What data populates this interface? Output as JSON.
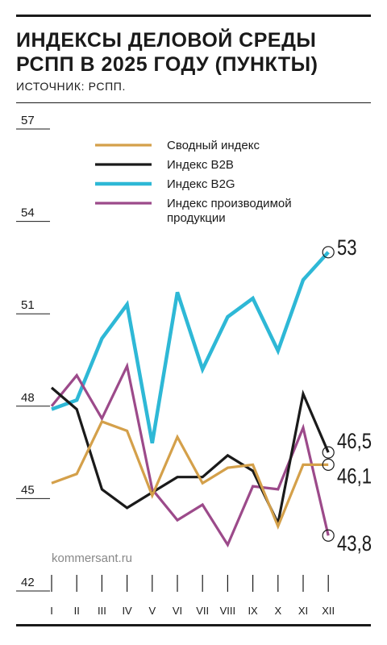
{
  "header": {
    "title": "ИНДЕКСЫ ДЕЛОВОЙ СРЕДЫ РСПП В 2025 ГОДУ (ПУНКТЫ)",
    "source": "ИСТОЧНИК: РСПП."
  },
  "watermark": "kommersant.ru",
  "chart_data": {
    "type": "line",
    "title": "ИНДЕКСЫ ДЕЛОВОЙ СРЕДЫ РСПП В 2025 ГОДУ (ПУНКТЫ)",
    "categories": [
      "I",
      "II",
      "III",
      "IV",
      "V",
      "VI",
      "VII",
      "VIII",
      "IX",
      "X",
      "XI",
      "XII"
    ],
    "yticks": [
      42,
      45,
      48,
      51,
      54,
      57
    ],
    "ylim": [
      42,
      57
    ],
    "grid": false,
    "legend_position": "top",
    "series": [
      {
        "name": "Сводный индекс",
        "color": "#d4a04a",
        "values": [
          45.5,
          45.8,
          47.5,
          47.2,
          45.1,
          47.0,
          45.5,
          46.0,
          46.1,
          44.1,
          46.1,
          46.1
        ],
        "end_label": "46,1"
      },
      {
        "name": "Индекс B2B",
        "color": "#1a1a1a",
        "values": [
          48.6,
          47.9,
          45.3,
          44.7,
          45.2,
          45.7,
          45.7,
          46.4,
          45.9,
          44.2,
          48.4,
          46.5
        ],
        "end_label": "46,5"
      },
      {
        "name": "Индекс B2G",
        "color": "#2eb8d6",
        "values": [
          47.9,
          48.2,
          50.2,
          51.3,
          46.8,
          51.7,
          49.2,
          50.9,
          51.5,
          49.8,
          52.1,
          53.0
        ],
        "end_label": "53"
      },
      {
        "name": "Индекс производимой продукции",
        "color": "#9c4a8a",
        "values": [
          48.0,
          49.0,
          47.6,
          49.3,
          45.3,
          44.3,
          44.8,
          43.5,
          45.4,
          45.3,
          47.3,
          43.8
        ],
        "end_label": "43,8"
      }
    ]
  }
}
